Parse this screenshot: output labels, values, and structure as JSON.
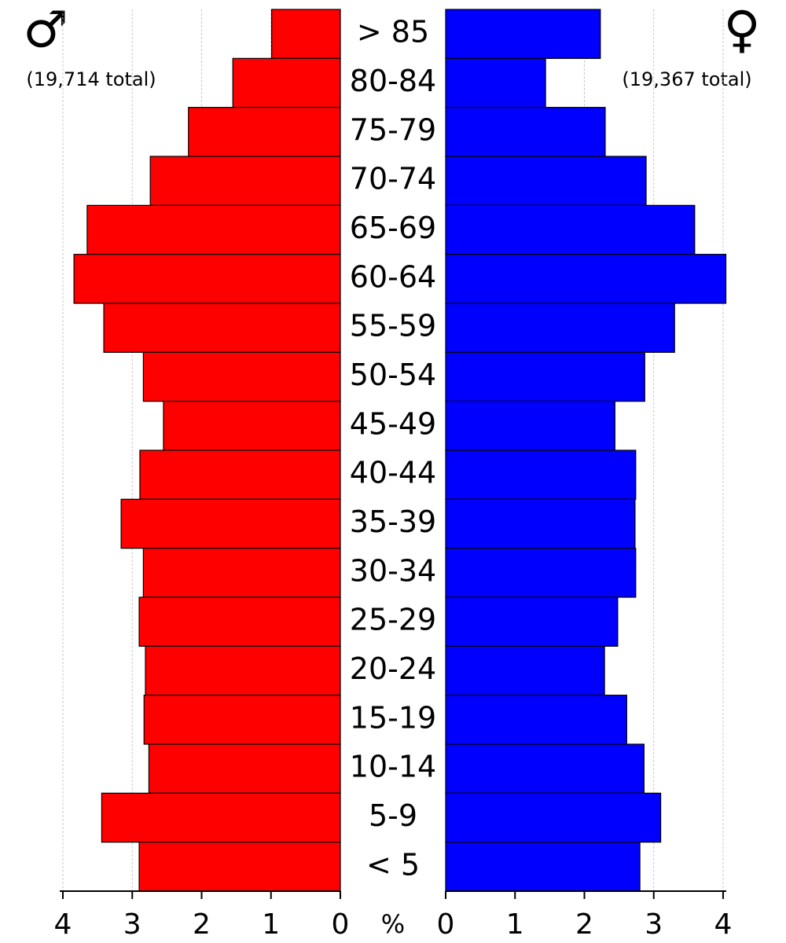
{
  "chart_data": {
    "type": "pyramid",
    "categories": [
      "> 85",
      "80-84",
      "75-79",
      "70-74",
      "65-69",
      "60-64",
      "55-59",
      "50-54",
      "45-49",
      "40-44",
      "35-39",
      "30-34",
      "25-29",
      "20-24",
      "15-19",
      "10-14",
      "5-9",
      "< 5"
    ],
    "series": [
      {
        "name": "♂",
        "total_label": "(19,714 total)",
        "color": "#ff0000",
        "side": "left",
        "values": [
          0.99,
          1.55,
          2.19,
          2.74,
          3.65,
          3.84,
          3.41,
          2.84,
          2.55,
          2.89,
          3.16,
          2.84,
          2.9,
          2.81,
          2.83,
          2.76,
          3.44,
          2.9
        ]
      },
      {
        "name": "♀",
        "total_label": "(19,367 total)",
        "color": "#0000ff",
        "side": "right",
        "values": [
          2.23,
          1.44,
          2.3,
          2.89,
          3.59,
          4.04,
          3.3,
          2.87,
          2.44,
          2.74,
          2.73,
          2.74,
          2.48,
          2.29,
          2.61,
          2.86,
          3.1,
          2.8
        ]
      }
    ],
    "xlim": [
      0,
      4
    ],
    "xticks": [
      0,
      1,
      2,
      3,
      4
    ],
    "x_label": "%",
    "grid": true
  }
}
